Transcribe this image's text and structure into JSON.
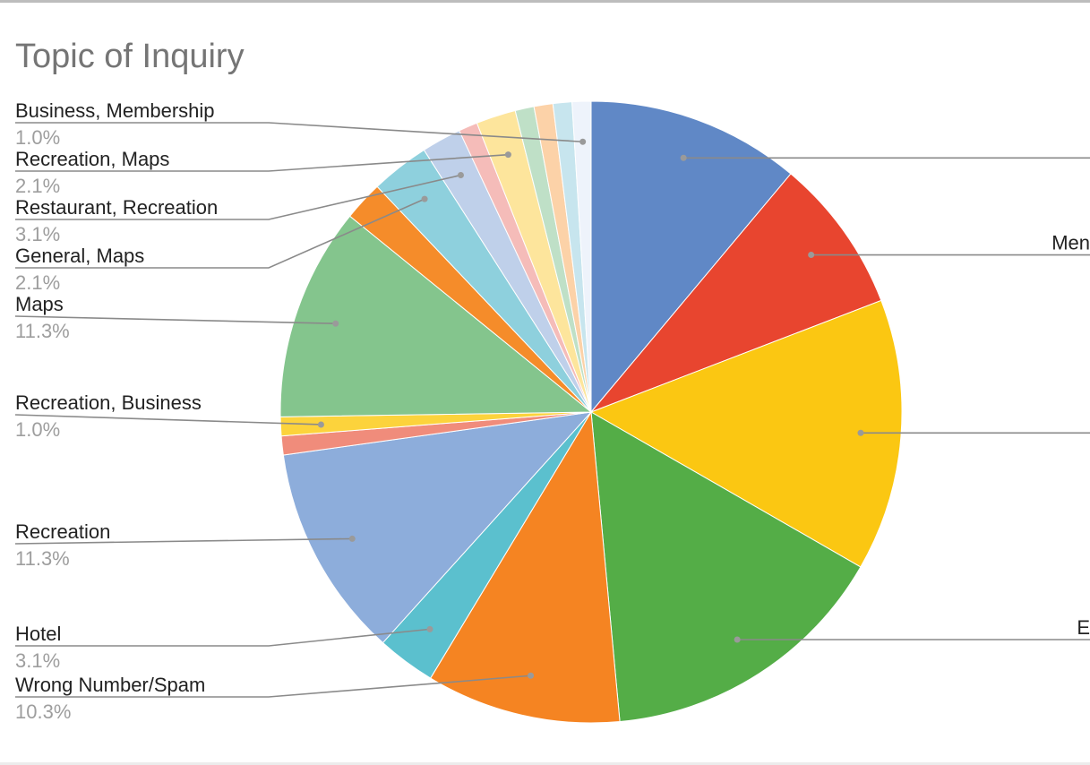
{
  "chart_data": {
    "type": "pie",
    "title": "Topic of Inquiry",
    "slices": [
      {
        "label": "",
        "percent": 11.3,
        "color": "#6088c6"
      },
      {
        "label": "",
        "percent": 8.2,
        "color": "#e8452f"
      },
      {
        "label": "",
        "percent": 14.4,
        "color": "#fbc712"
      },
      {
        "label": "",
        "percent": 15.5,
        "color": "#54ad47"
      },
      {
        "label": "Wrong Number/Spam",
        "percent": 10.3,
        "color": "#f58422"
      },
      {
        "label": "Hotel",
        "percent": 3.1,
        "color": "#5bc0ce"
      },
      {
        "label": "Recreation",
        "percent": 11.3,
        "color": "#8daddb"
      },
      {
        "label": "",
        "percent": 1.0,
        "color": "#f08c7b"
      },
      {
        "label": "Recreation, Business",
        "percent": 1.0,
        "color": "#fcd33c"
      },
      {
        "label": "Maps",
        "percent": 11.3,
        "color": "#84c58d"
      },
      {
        "label": "General, Maps",
        "percent": 2.1,
        "color": "#f58c2a"
      },
      {
        "label": "Restaurant, Recreation",
        "percent": 3.1,
        "color": "#8ed0dd"
      },
      {
        "label": "Recreation, Maps",
        "percent": 2.1,
        "color": "#bfd0ea"
      },
      {
        "label": "",
        "percent": 1.0,
        "color": "#f5bcb9"
      },
      {
        "label": "",
        "percent": 2.1,
        "color": "#fde59c"
      },
      {
        "label": "",
        "percent": 1.0,
        "color": "#bfe0c7"
      },
      {
        "label": "",
        "percent": 1.0,
        "color": "#fcd2a8"
      },
      {
        "label": "",
        "percent": 1.0,
        "color": "#c7e5ee"
      },
      {
        "label": "Business, Membership",
        "percent": 1.0,
        "color": "#eef3fb"
      }
    ],
    "labels": [
      {
        "slice": 18,
        "name": "Business, Membership",
        "pct": "1.0%"
      },
      {
        "slice": 14,
        "name": "Recreation, Maps",
        "pct": "2.1%"
      },
      {
        "slice": 12,
        "name": "Restaurant, Recreation",
        "pct": "3.1%"
      },
      {
        "slice": 11,
        "name": "General, Maps",
        "pct": "2.1%"
      },
      {
        "slice": 9,
        "name": "Maps",
        "pct": "11.3%"
      },
      {
        "slice": 8,
        "name": "Recreation, Business",
        "pct": "1.0%"
      },
      {
        "slice": 6,
        "name": "Recreation",
        "pct": "11.3%"
      },
      {
        "slice": 5,
        "name": "Hotel",
        "pct": "3.1%"
      },
      {
        "slice": 4,
        "name": "Wrong Number/Spam",
        "pct": "10.3%"
      }
    ],
    "right_labels": [
      {
        "slice": 1,
        "name": "Men"
      },
      {
        "slice": 3,
        "name": "E"
      }
    ]
  }
}
